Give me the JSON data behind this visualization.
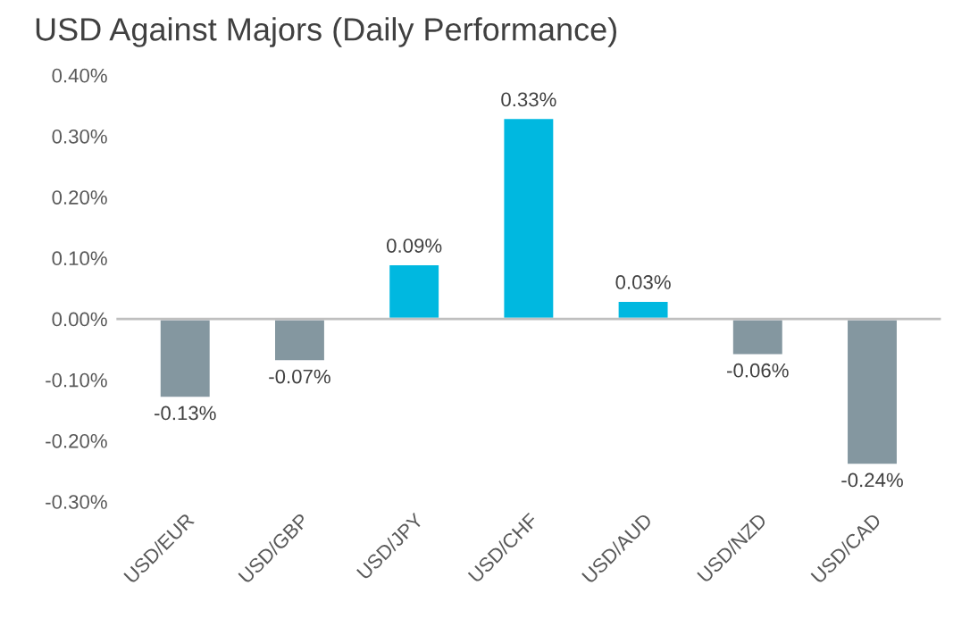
{
  "chart_data": {
    "type": "bar",
    "title": "USD Against Majors (Daily Performance)",
    "categories": [
      "USD/EUR",
      "USD/GBP",
      "USD/JPY",
      "USD/CHF",
      "USD/AUD",
      "USD/NZD",
      "USD/CAD"
    ],
    "values": [
      -0.13,
      -0.07,
      0.09,
      0.33,
      0.03,
      -0.06,
      -0.24
    ],
    "colors": [
      "#8497a0",
      "#8497a0",
      "#00b8e0",
      "#00b8e0",
      "#00b8e0",
      "#8497a0",
      "#8497a0"
    ],
    "value_labels": [
      "-0.13%",
      "-0.07%",
      "0.09%",
      "0.33%",
      "0.03%",
      "-0.06%",
      "-0.24%"
    ],
    "ylim": [
      -0.3,
      0.4
    ],
    "yticks": [
      {
        "value": -0.3,
        "label": "-0.30%"
      },
      {
        "value": -0.2,
        "label": "-0.20%"
      },
      {
        "value": -0.1,
        "label": "-0.10%"
      },
      {
        "value": 0.0,
        "label": "0.00%"
      },
      {
        "value": 0.1,
        "label": "0.10%"
      },
      {
        "value": 0.2,
        "label": "0.20%"
      },
      {
        "value": 0.3,
        "label": "0.30%"
      },
      {
        "value": 0.4,
        "label": "0.40%"
      }
    ],
    "ref_lines": [
      {
        "axis": "y",
        "value": 0,
        "color": "#bfbfbf"
      }
    ],
    "grid": false
  }
}
